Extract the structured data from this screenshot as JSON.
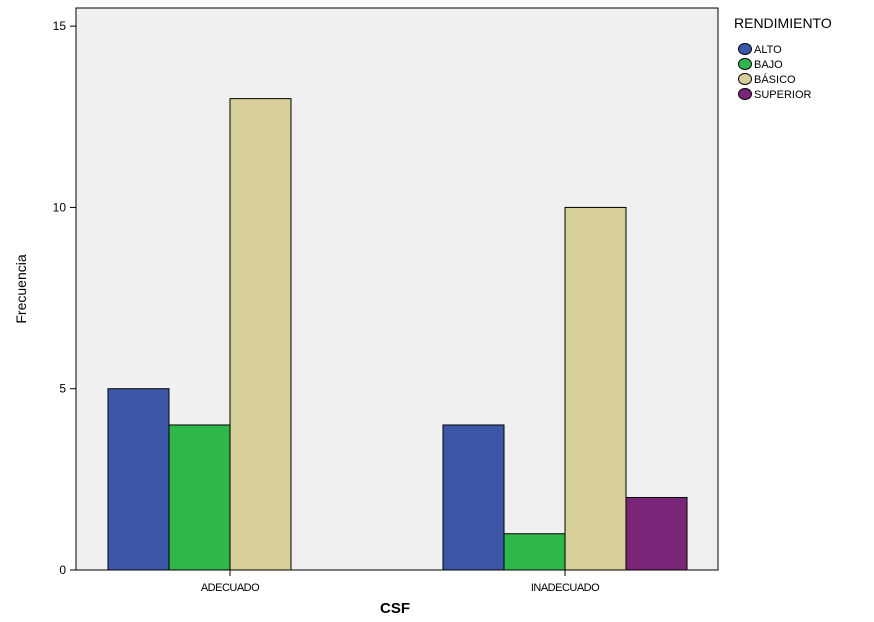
{
  "chart_data": {
    "type": "bar",
    "title": "",
    "xlabel": "CSF",
    "ylabel": "Frecuencia",
    "categories": [
      "ADECUADO",
      "INADECUADO"
    ],
    "ylim": [
      0,
      15.5
    ],
    "yticks": [
      0,
      5,
      10,
      15
    ],
    "grid": false,
    "legend": {
      "title": "RENDIMIENTO",
      "placement": "right"
    },
    "series": [
      {
        "name": "ALTO",
        "color": "#3c56a8",
        "values": [
          5,
          4
        ]
      },
      {
        "name": "BAJO",
        "color": "#2fb84a",
        "values": [
          4,
          1
        ]
      },
      {
        "name": "BÁSICO",
        "color": "#d6cf99",
        "values": [
          13,
          10
        ]
      },
      {
        "name": "SUPERIOR",
        "color": "#7a2578",
        "values": [
          null,
          2
        ]
      }
    ],
    "plot_background": "#f0f0f0"
  }
}
